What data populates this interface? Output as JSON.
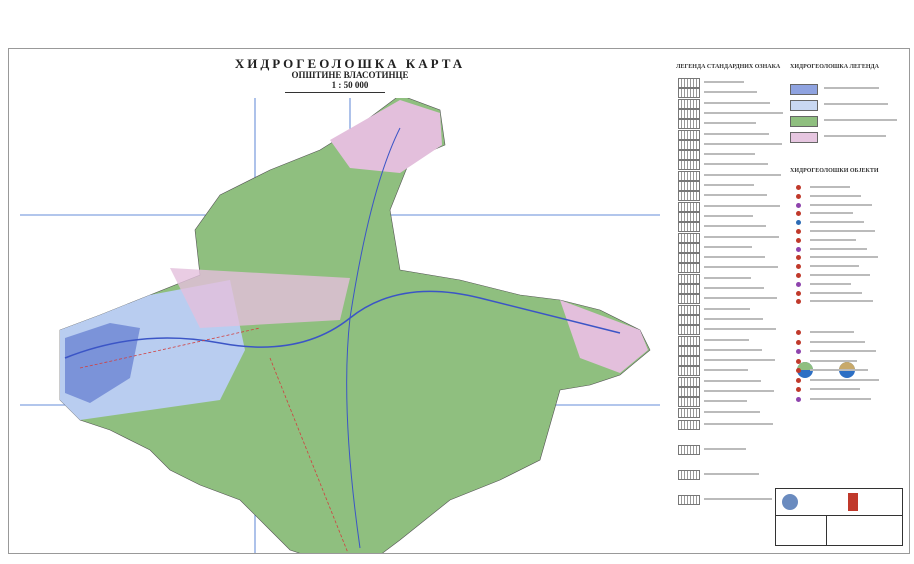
{
  "header": {
    "title": "ХИДРОГЕОЛОШКА КАРТА",
    "subtitle": "ОПШТИНЕ ВЛАСОТИНЦЕ",
    "scale": "1 : 50 000"
  },
  "legend_standard": {
    "heading": "ЛЕГЕНДА СТАНДАРДНИХ ОЗНАКА"
  },
  "legend_hydro": {
    "heading": "ХИДРОГЕОЛОШКА ЛЕГЕНДА",
    "swatch_colors": [
      "#8fa3e0",
      "#c9d8f2",
      "#8fbf7f",
      "#e6c6e0"
    ]
  },
  "legend_objects": {
    "heading": "ХИДРОГЕОЛОШКИ ОБЈЕКТИ",
    "marker_colors": [
      "#c0392b",
      "#c0392b",
      "#8e44ad",
      "#c0392b",
      "#2c6bb5",
      "#c0392b",
      "#c0392b",
      "#8e44ad",
      "#c0392b",
      "#c0392b",
      "#c0392b",
      "#8e44ad",
      "#c0392b",
      "#c0392b",
      "#c0392b",
      "#c0392b",
      "#8e44ad",
      "#c0392b",
      "#c0392b",
      "#c0392b",
      "#c0392b",
      "#8e44ad"
    ]
  },
  "map_colors": {
    "base": "#8fbf7f",
    "alluvium": "#b9cdf0",
    "karst": "#7b93d9",
    "pink": "#e3bfdc",
    "river": "#3b55c6",
    "grid": "#3366cc"
  }
}
